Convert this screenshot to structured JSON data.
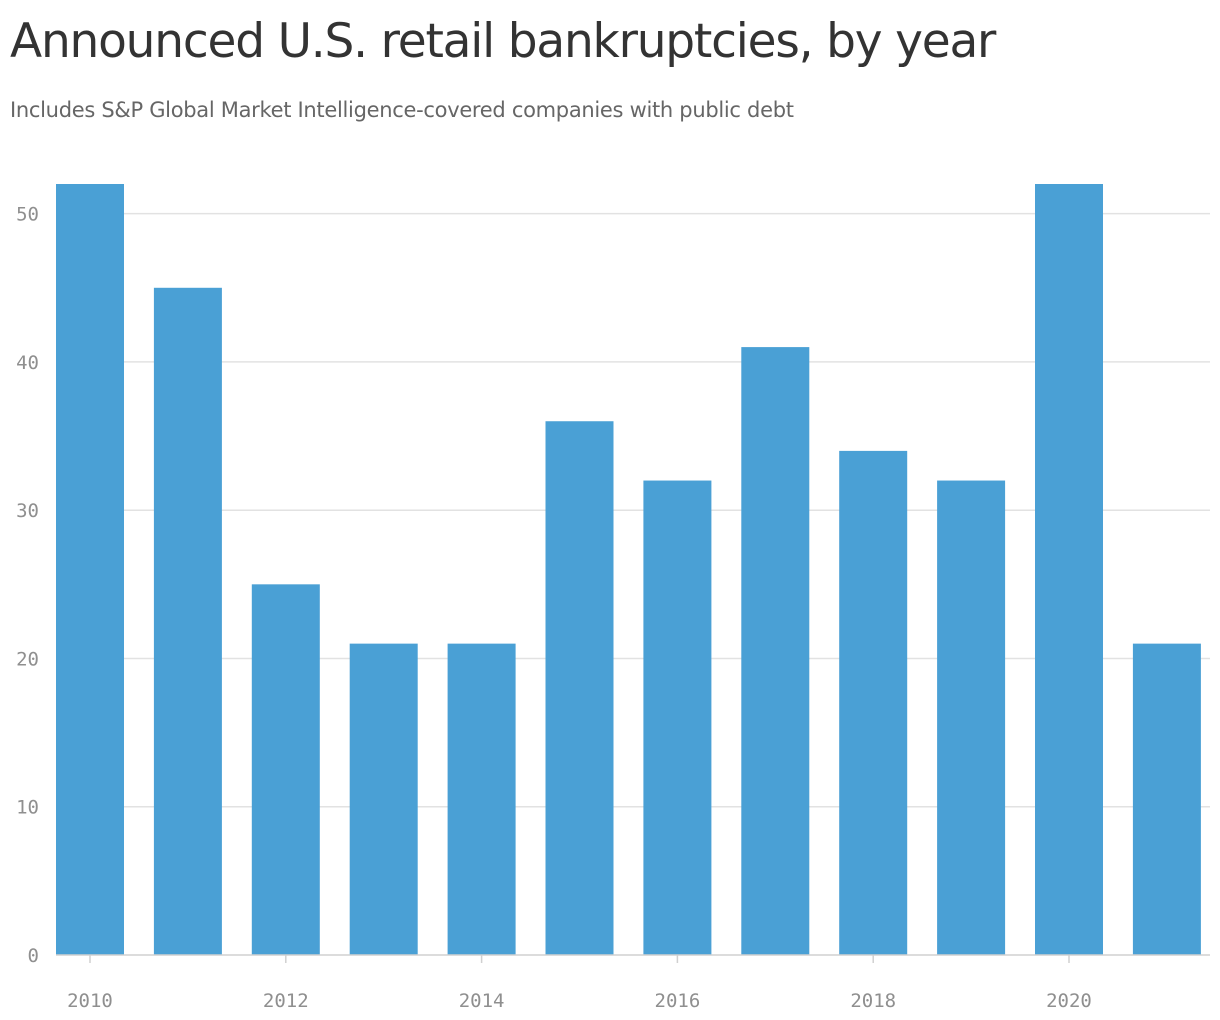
{
  "chart_data": {
    "type": "bar",
    "title": "Announced U.S. retail bankruptcies, by year",
    "subtitle": "Includes S&P Global Market Intelligence-covered companies with public debt",
    "xlabel": "",
    "ylabel": "",
    "categories": [
      2010,
      2011,
      2012,
      2013,
      2014,
      2015,
      2016,
      2017,
      2018,
      2019,
      2020,
      2021
    ],
    "values": [
      52,
      45,
      25,
      21,
      21,
      36,
      32,
      41,
      34,
      32,
      52,
      21
    ],
    "ylim": [
      0,
      52
    ],
    "y_ticks": [
      "0",
      "10",
      "20",
      "30",
      "40",
      "50"
    ],
    "x_ticks": [
      "2010",
      "2012",
      "2014",
      "2016",
      "2018",
      "2020"
    ],
    "grid": "horizontal",
    "legend": "none",
    "colors": {
      "bar": "#4aa0d5",
      "grid": "#e2e2e2",
      "axis": "#d0d0d0",
      "tick_text": "#8f8f8f",
      "title": "#333333",
      "subtitle": "#666666"
    }
  }
}
